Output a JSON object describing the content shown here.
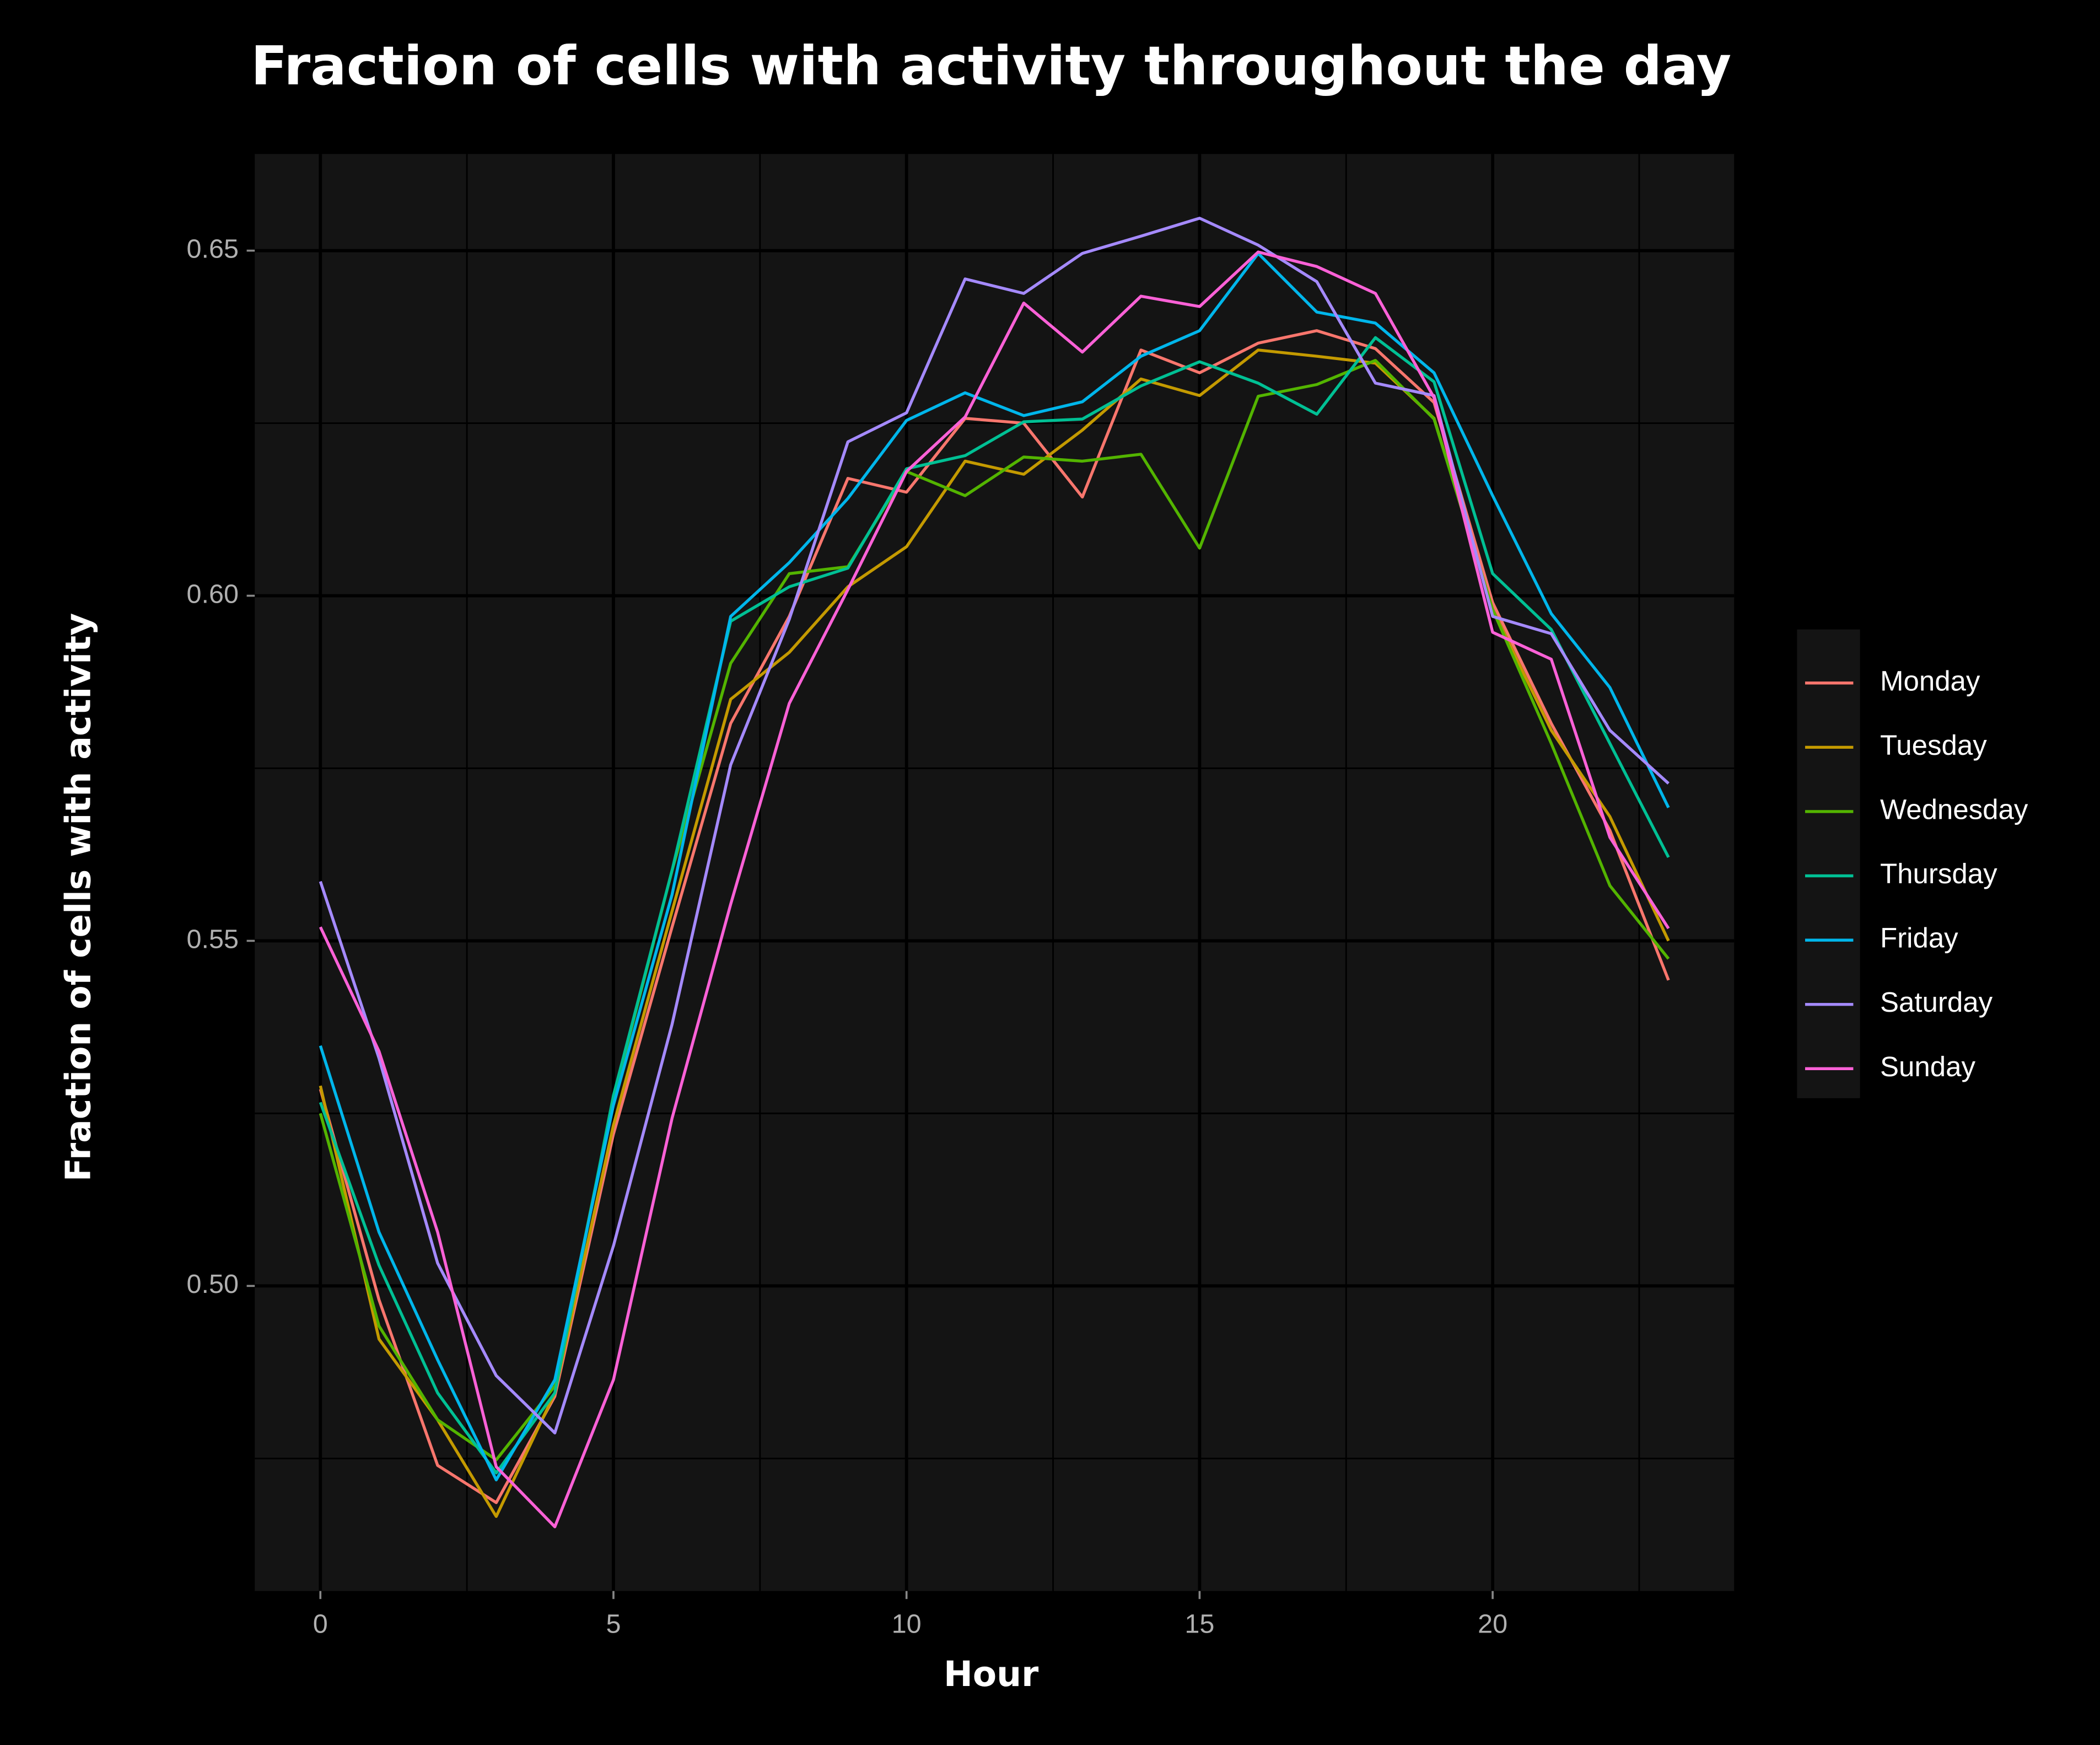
{
  "chart_data": {
    "type": "line",
    "title": "Fraction of cells with activity throughout the day",
    "x_label": "Hour",
    "y_label": "Fraction of cells with activity",
    "x": [
      0,
      1,
      2,
      3,
      4,
      5,
      6,
      7,
      8,
      9,
      10,
      11,
      12,
      13,
      14,
      15,
      16,
      17,
      18,
      19,
      20,
      21,
      22,
      23
    ],
    "xlim": [
      -1.12,
      24.12
    ],
    "xticks": [
      0,
      5,
      10,
      15,
      20
    ],
    "xminor": [
      2.5,
      7.5,
      12.5,
      17.5,
      22.5
    ],
    "ylim": [
      0.4558,
      0.664
    ],
    "yticks": [
      {
        "value": 0.5,
        "label": "0.50"
      },
      {
        "value": 0.55,
        "label": "0.55"
      },
      {
        "value": 0.6,
        "label": "0.60"
      },
      {
        "value": 0.65,
        "label": "0.65"
      }
    ],
    "yminor": [
      0.475,
      0.525,
      0.575,
      0.625
    ],
    "grid": true,
    "legend": "right",
    "series": [
      {
        "name": "Monday",
        "color": "#F8766D",
        "values": [
          0.5285,
          0.498,
          0.474,
          0.4686,
          0.484,
          0.522,
          0.552,
          0.5815,
          0.597,
          0.617,
          0.615,
          0.6257,
          0.625,
          0.6143,
          0.6356,
          0.6323,
          0.6366,
          0.6384,
          0.6358,
          0.628,
          0.599,
          0.5815,
          0.566,
          0.5443
        ]
      },
      {
        "name": "Tuesday",
        "color": "#C49A00",
        "values": [
          0.529,
          0.4923,
          0.4806,
          0.4666,
          0.4845,
          0.5233,
          0.5543,
          0.585,
          0.5918,
          0.6013,
          0.6071,
          0.6195,
          0.6176,
          0.624,
          0.6314,
          0.629,
          0.6356,
          0.6347,
          0.6337,
          0.6257,
          0.598,
          0.5805,
          0.568,
          0.55
        ]
      },
      {
        "name": "Wednesday",
        "color": "#53B400",
        "values": [
          0.525,
          0.4942,
          0.4806,
          0.4748,
          0.4855,
          0.5272,
          0.5602,
          0.5902,
          0.6032,
          0.6042,
          0.618,
          0.6145,
          0.6201,
          0.6195,
          0.6205,
          0.6069,
          0.6289,
          0.6306,
          0.6341,
          0.6256,
          0.598,
          0.5786,
          0.558,
          0.5474
        ]
      },
      {
        "name": "Thursday",
        "color": "#00C094",
        "values": [
          0.5266,
          0.503,
          0.4845,
          0.4729,
          0.4845,
          0.5276,
          0.5602,
          0.5963,
          0.6013,
          0.604,
          0.6184,
          0.6203,
          0.6252,
          0.6256,
          0.6304,
          0.6339,
          0.6308,
          0.6263,
          0.6374,
          0.631,
          0.6032,
          0.5951,
          0.5786,
          0.5621
        ]
      },
      {
        "name": "Friday",
        "color": "#00B6EB",
        "values": [
          0.5348,
          0.5078,
          0.4893,
          0.4719,
          0.4864,
          0.5262,
          0.5567,
          0.597,
          0.6048,
          0.6141,
          0.6254,
          0.6294,
          0.6261,
          0.6281,
          0.6347,
          0.6384,
          0.6496,
          0.6411,
          0.6395,
          0.6323,
          0.6145,
          0.5974,
          0.5867,
          0.5693
        ]
      },
      {
        "name": "Saturday",
        "color": "#A58AFF",
        "values": [
          0.5586,
          0.533,
          0.5033,
          0.487,
          0.4787,
          0.5058,
          0.5379,
          0.5755,
          0.5966,
          0.6223,
          0.6265,
          0.6459,
          0.6438,
          0.6496,
          0.6521,
          0.6547,
          0.6508,
          0.6455,
          0.6308,
          0.629,
          0.597,
          0.5945,
          0.5805,
          0.5728
        ]
      },
      {
        "name": "Sunday",
        "color": "#FB61D7",
        "values": [
          0.552,
          0.534,
          0.5078,
          0.4738,
          0.4651,
          0.4864,
          0.5243,
          0.5553,
          0.5844,
          0.6009,
          0.618,
          0.6259,
          0.6424,
          0.6353,
          0.6434,
          0.6419,
          0.6498,
          0.6477,
          0.6438,
          0.6287,
          0.5947,
          0.5908,
          0.565,
          0.5518
        ]
      }
    ]
  }
}
